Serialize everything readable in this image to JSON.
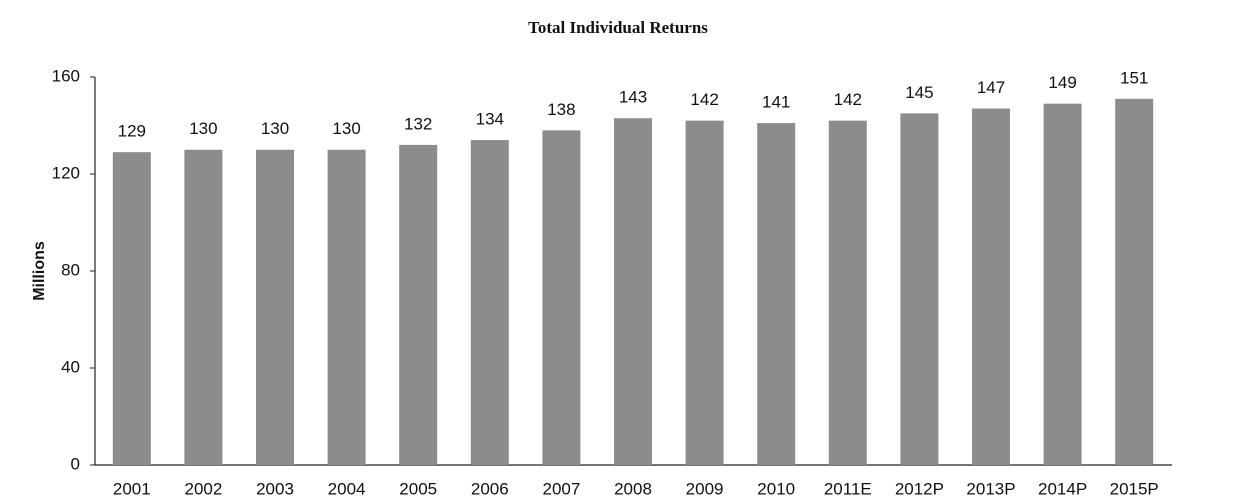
{
  "chart_data": {
    "type": "bar",
    "title": "Total Individual Returns",
    "y_label": "Millions",
    "categories": [
      "2001",
      "2002",
      "2003",
      "2004",
      "2005",
      "2006",
      "2007",
      "2008",
      "2009",
      "2010",
      "2011E",
      "2012P",
      "2013P",
      "2014P",
      "2015P"
    ],
    "values": [
      129,
      130,
      130,
      130,
      132,
      134,
      138,
      143,
      142,
      141,
      142,
      145,
      147,
      149,
      151
    ],
    "color": "#8c8c8c",
    "ylim": [
      0,
      160
    ],
    "yticks": [
      0,
      40,
      80,
      120,
      160
    ],
    "grid": false
  }
}
